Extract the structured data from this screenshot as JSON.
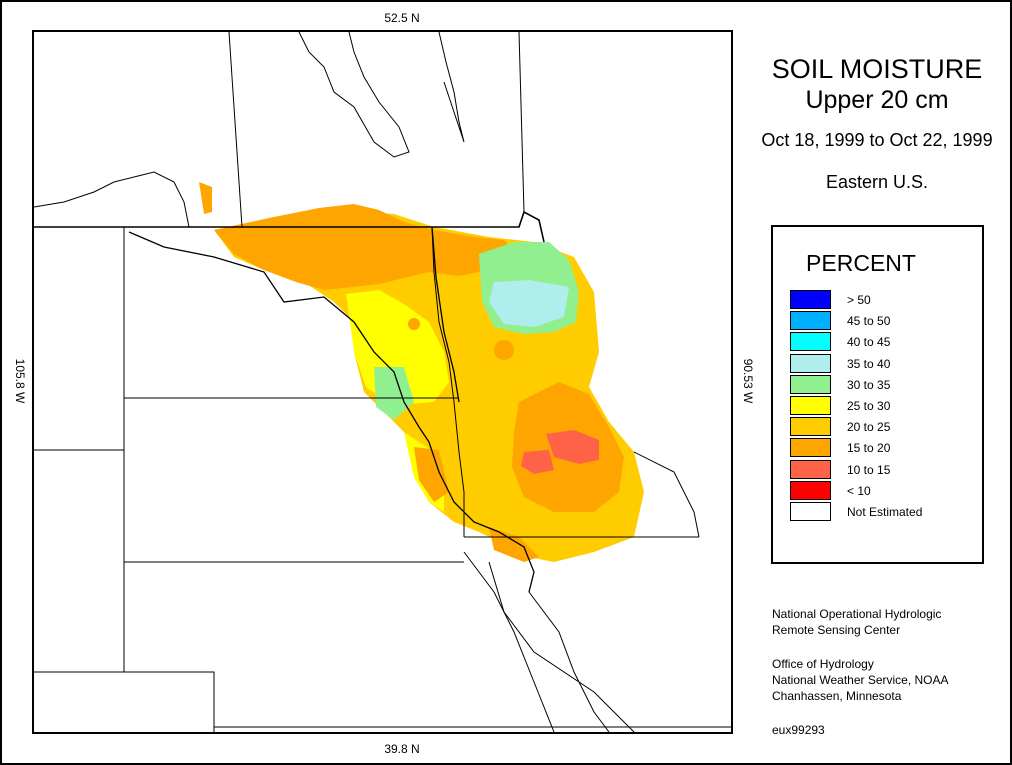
{
  "title": {
    "line1": "SOIL MOISTURE",
    "line2": "Upper 20 cm",
    "dates": "Oct 18, 1999 to Oct 22, 1999",
    "region": "Eastern U.S."
  },
  "map_labels": {
    "top_lat": "52.5 N",
    "bottom_lat": "39.8 N",
    "left_lon": "105.8 W",
    "right_lon": "90.53 W"
  },
  "legend": {
    "title": "PERCENT",
    "items": [
      {
        "label": "> 50",
        "color": "#0000ff"
      },
      {
        "label": "45 to 50",
        "color": "#00b0ff"
      },
      {
        "label": "40 to 45",
        "color": "#00ffff"
      },
      {
        "label": "35 to 40",
        "color": "#b0eeee"
      },
      {
        "label": "30 to 35",
        "color": "#90f090"
      },
      {
        "label": "25 to 30",
        "color": "#ffff00"
      },
      {
        "label": "20 to 25",
        "color": "#ffcc00"
      },
      {
        "label": "15 to 20",
        "color": "#ffa500"
      },
      {
        "label": "10 to 15",
        "color": "#ff6347"
      },
      {
        "label": "< 10",
        "color": "#ff0000"
      },
      {
        "label": "Not Estimated",
        "color": "#ffffff"
      }
    ]
  },
  "credits": {
    "line1": "National Operational Hydrologic",
    "line2": "Remote Sensing Center",
    "line3": "Office of Hydrology",
    "line4": "National Weather Service, NOAA",
    "line5": "Chanhassen, Minnesota",
    "product_id": "eux99293"
  }
}
